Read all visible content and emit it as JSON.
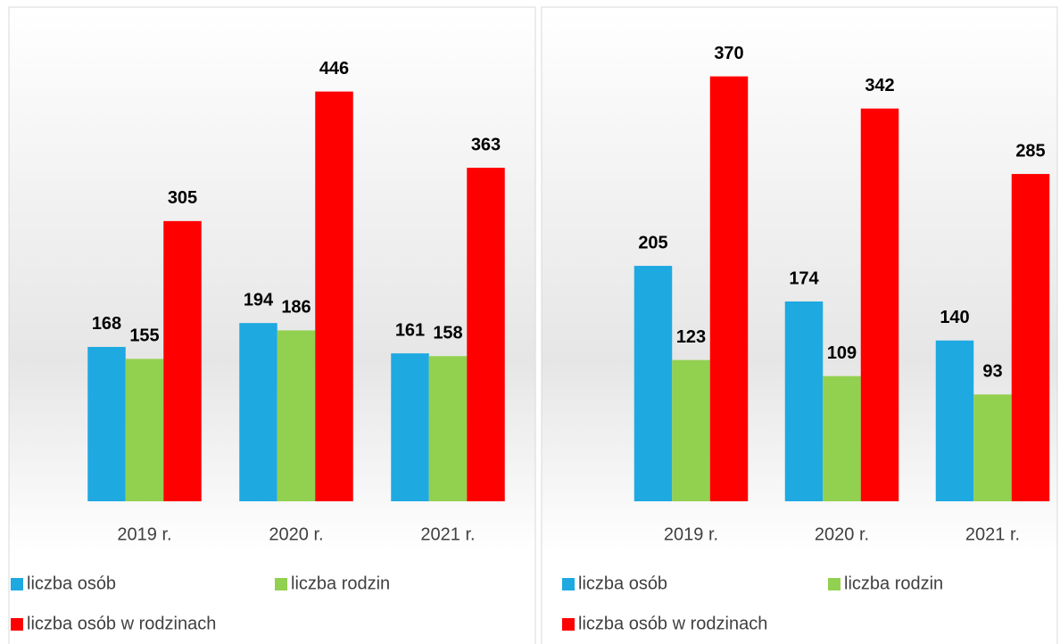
{
  "chart_data": [
    {
      "type": "bar",
      "categories": [
        "2019 r.",
        "2020 r.",
        "2021 r."
      ],
      "ylim": [
        0,
        500
      ],
      "series": [
        {
          "name": "liczba osób",
          "color": "#1ea9e1",
          "values": [
            168,
            194,
            161
          ]
        },
        {
          "name": "liczba rodzin",
          "color": "#92d050",
          "values": [
            155,
            186,
            158
          ]
        },
        {
          "name": "liczba osób w rodzinach",
          "color": "#ff0000",
          "values": [
            305,
            446,
            363
          ]
        }
      ]
    },
    {
      "type": "bar",
      "categories": [
        "2019 r.",
        "2020 r.",
        "2021 r."
      ],
      "ylim": [
        0,
        400
      ],
      "series": [
        {
          "name": "liczba osób",
          "color": "#1ea9e1",
          "values": [
            205,
            174,
            140
          ]
        },
        {
          "name": "liczba rodzin",
          "color": "#92d050",
          "values": [
            123,
            109,
            93
          ]
        },
        {
          "name": "liczba osób w rodzinach",
          "color": "#ff0000",
          "values": [
            370,
            342,
            285
          ]
        }
      ]
    }
  ]
}
